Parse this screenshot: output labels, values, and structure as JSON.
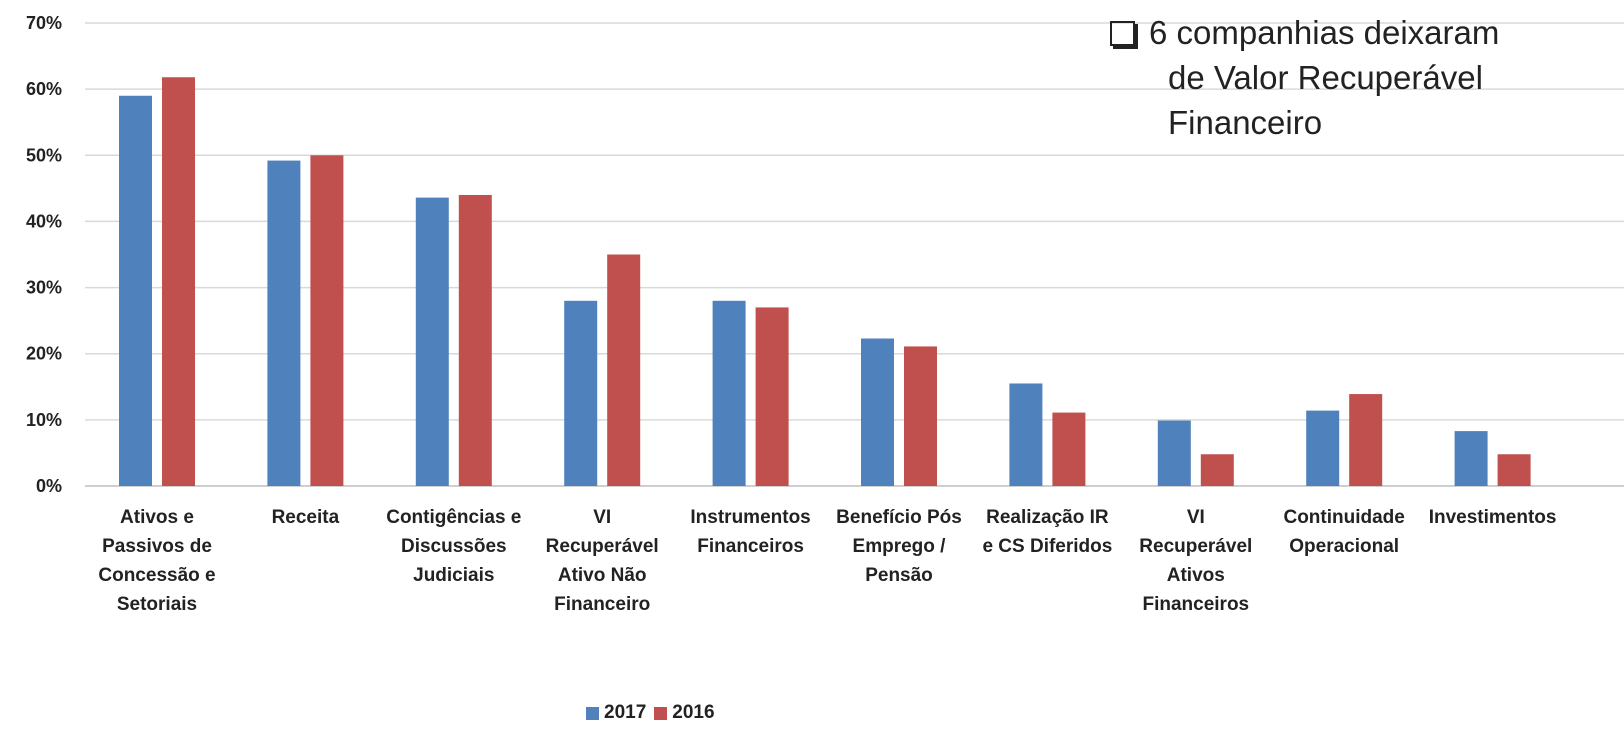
{
  "chart_data": {
    "type": "bar",
    "categories": [
      "Ativos e\nPassivos de\nConcessão e\nSetoriais",
      "Receita",
      "Contigências e\nDiscussões\nJudiciais",
      "VI\nRecuperável\nAtivo Não\nFinanceiro",
      "Instrumentos\nFinanceiros",
      "Benefício Pós\nEmprego /\nPensão",
      "Realização IR\ne CS Diferidos",
      "VI\nRecuperável\nAtivos\nFinanceiros",
      "Continuidade\nOperacional",
      "Investimentos"
    ],
    "series": [
      {
        "name": "2017",
        "color": "#4F81BD",
        "values": [
          59,
          49.2,
          43.6,
          28,
          28,
          22.3,
          15.5,
          9.9,
          11.4,
          8.3
        ]
      },
      {
        "name": "2016",
        "color": "#C0504D",
        "values": [
          61.8,
          50,
          44,
          35,
          27,
          21.1,
          11.1,
          4.8,
          13.9,
          4.8
        ]
      }
    ],
    "y_ticks": [
      "0%",
      "10%",
      "20%",
      "30%",
      "40%",
      "50%",
      "60%",
      "70%"
    ],
    "ylim": [
      0,
      70
    ],
    "grid": true,
    "legend_position": "bottom"
  },
  "note": {
    "lines": [
      "6 companhias deixaram",
      "de Valor Recuperável",
      "Financeiro"
    ],
    "bullet_icon": "checkbox-icon"
  }
}
